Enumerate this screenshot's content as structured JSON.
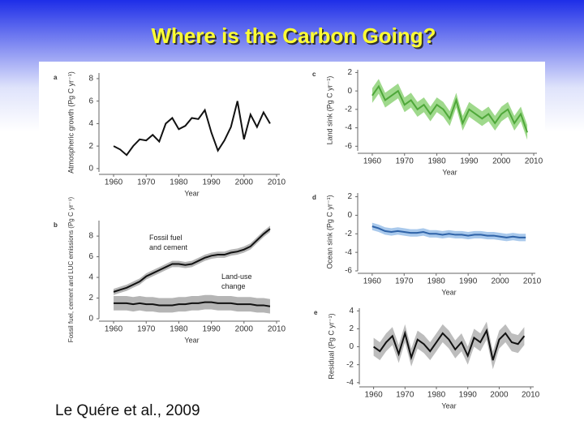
{
  "title": "Where is the Carbon Going?",
  "citation": "Le Quére et al., 2009",
  "chart_data": [
    {
      "type": "line",
      "panel_label": "a",
      "ylabel": "Atmospheric growth (Pg C yr⁻¹)",
      "xlabel": "Year",
      "x": [
        1960,
        1962,
        1964,
        1966,
        1968,
        1970,
        1972,
        1974,
        1976,
        1978,
        1980,
        1982,
        1984,
        1986,
        1988,
        1990,
        1992,
        1994,
        1996,
        1998,
        2000,
        2002,
        2004,
        2006,
        2008
      ],
      "xlim": [
        1957,
        2011
      ],
      "xticks": [
        1960,
        1970,
        1980,
        1990,
        2000,
        2010
      ],
      "ylim": [
        -0.3,
        8.5
      ],
      "yticks": [
        0,
        2,
        4,
        6,
        8
      ],
      "series": [
        {
          "color": "#111111",
          "values": [
            2,
            1.7,
            1.2,
            2,
            2.6,
            2.5,
            3,
            2.4,
            4,
            4.5,
            3.5,
            3.8,
            4.5,
            4.4,
            5.2,
            3.2,
            1.6,
            2.5,
            3.7,
            6,
            2.6,
            4.8,
            3.7,
            5,
            4
          ]
        }
      ]
    },
    {
      "type": "line",
      "panel_label": "b",
      "ylabel": "Fossil fuel, cement and LUC emissions (Pg C yr⁻¹)",
      "xlabel": "Year",
      "x": [
        1960,
        1962,
        1964,
        1966,
        1968,
        1970,
        1972,
        1974,
        1976,
        1978,
        1980,
        1982,
        1984,
        1986,
        1988,
        1990,
        1992,
        1994,
        1996,
        1998,
        2000,
        2002,
        2004,
        2006,
        2008
      ],
      "xlim": [
        1957,
        2011
      ],
      "xticks": [
        1960,
        1970,
        1980,
        1990,
        2000,
        2010
      ],
      "ylim": [
        0,
        9.5
      ],
      "yticks": [
        0,
        2,
        4,
        6,
        8
      ],
      "series": [
        {
          "name": "Fossil fuel and cement",
          "color": "#111111",
          "band_color": "#b5b5b5",
          "values": [
            2.6,
            2.8,
            3,
            3.3,
            3.6,
            4.1,
            4.4,
            4.7,
            5,
            5.3,
            5.3,
            5.2,
            5.3,
            5.6,
            5.9,
            6.1,
            6.2,
            6.2,
            6.4,
            6.5,
            6.7,
            7,
            7.6,
            8.2,
            8.7
          ],
          "errors": [
            0.3,
            0.3,
            0.3,
            0.3,
            0.3,
            0.3,
            0.3,
            0.3,
            0.3,
            0.3,
            0.3,
            0.3,
            0.3,
            0.3,
            0.3,
            0.3,
            0.3,
            0.3,
            0.3,
            0.3,
            0.3,
            0.3,
            0.3,
            0.3,
            0.3
          ]
        },
        {
          "name": "Land-use change",
          "color": "#111111",
          "band_color": "#b5b5b5",
          "values": [
            1.5,
            1.5,
            1.5,
            1.4,
            1.5,
            1.4,
            1.4,
            1.3,
            1.3,
            1.3,
            1.4,
            1.4,
            1.5,
            1.5,
            1.6,
            1.6,
            1.5,
            1.5,
            1.5,
            1.4,
            1.4,
            1.4,
            1.3,
            1.3,
            1.2
          ],
          "errors": [
            0.7,
            0.7,
            0.7,
            0.7,
            0.7,
            0.7,
            0.7,
            0.7,
            0.7,
            0.7,
            0.7,
            0.7,
            0.7,
            0.7,
            0.7,
            0.7,
            0.7,
            0.7,
            0.7,
            0.7,
            0.7,
            0.7,
            0.7,
            0.7,
            0.7
          ]
        }
      ]
    },
    {
      "type": "line",
      "panel_label": "c",
      "ylabel": "Land sink (Pg C yr⁻¹)",
      "xlabel": "Year",
      "x": [
        1960,
        1962,
        1964,
        1966,
        1968,
        1970,
        1972,
        1974,
        1976,
        1978,
        1980,
        1982,
        1984,
        1986,
        1988,
        1990,
        1992,
        1994,
        1996,
        1998,
        2000,
        2002,
        2004,
        2006,
        2008
      ],
      "xlim": [
        1957,
        2011
      ],
      "xticks": [
        1960,
        1970,
        1980,
        1990,
        2000,
        2010
      ],
      "ylim": [
        -6.5,
        2.3
      ],
      "yticks": [
        2,
        0,
        -2,
        -4,
        -6
      ],
      "series": [
        {
          "color": "#4fa83a",
          "band_color": "#9fd98c",
          "values": [
            -0.5,
            0.5,
            -1,
            -0.5,
            0,
            -1.5,
            -1,
            -2,
            -1.5,
            -2.5,
            -1.5,
            -2,
            -3,
            -1,
            -3.5,
            -2,
            -2.5,
            -3,
            -2.5,
            -3.5,
            -2.5,
            -2,
            -3.5,
            -2.5,
            -4.5
          ],
          "errors": [
            0.8,
            0.8,
            0.8,
            0.8,
            0.8,
            0.8,
            0.8,
            0.8,
            0.8,
            0.8,
            0.8,
            0.8,
            0.8,
            0.8,
            0.8,
            0.8,
            0.8,
            0.8,
            0.8,
            0.8,
            0.8,
            0.8,
            0.8,
            0.8,
            0.8
          ]
        }
      ]
    },
    {
      "type": "line",
      "panel_label": "d",
      "ylabel": "Ocean sink (Pg C yr⁻¹)",
      "xlabel": "Year",
      "x": [
        1960,
        1962,
        1964,
        1966,
        1968,
        1970,
        1972,
        1974,
        1976,
        1978,
        1980,
        1982,
        1984,
        1986,
        1988,
        1990,
        1992,
        1994,
        1996,
        1998,
        2000,
        2002,
        2004,
        2006,
        2008
      ],
      "xlim": [
        1957,
        2011
      ],
      "xticks": [
        1960,
        1970,
        1980,
        1990,
        2000,
        2010
      ],
      "ylim": [
        -6,
        2.4
      ],
      "yticks": [
        2,
        0,
        -2,
        -4,
        -6
      ],
      "series": [
        {
          "color": "#2f63a8",
          "band_color": "#a9c9ec",
          "values": [
            -1.2,
            -1.4,
            -1.7,
            -1.8,
            -1.7,
            -1.8,
            -1.9,
            -1.9,
            -1.8,
            -2,
            -2,
            -2.1,
            -2,
            -2.1,
            -2.1,
            -2.2,
            -2.1,
            -2.1,
            -2.2,
            -2.2,
            -2.3,
            -2.4,
            -2.3,
            -2.4,
            -2.4
          ],
          "errors": [
            0.4,
            0.4,
            0.4,
            0.4,
            0.4,
            0.4,
            0.4,
            0.4,
            0.4,
            0.4,
            0.4,
            0.4,
            0.4,
            0.4,
            0.4,
            0.4,
            0.4,
            0.4,
            0.4,
            0.4,
            0.4,
            0.4,
            0.4,
            0.4,
            0.4
          ]
        }
      ]
    },
    {
      "type": "line",
      "panel_label": "e",
      "ylabel": "Residual (Pg C yr⁻¹)",
      "xlabel": "Year",
      "x": [
        1960,
        1962,
        1964,
        1966,
        1968,
        1970,
        1972,
        1974,
        1976,
        1978,
        1980,
        1982,
        1984,
        1986,
        1988,
        1990,
        1992,
        1994,
        1996,
        1998,
        2000,
        2002,
        2004,
        2006,
        2008
      ],
      "xlim": [
        1957,
        2011
      ],
      "xticks": [
        1960,
        1970,
        1980,
        1990,
        2000,
        2010
      ],
      "ylim": [
        -4.2,
        4.3
      ],
      "yticks": [
        4,
        2,
        0,
        -2,
        -4
      ],
      "series": [
        {
          "color": "#111111",
          "band_color": "#bdbdbd",
          "values": [
            0,
            -0.5,
            0.5,
            1.2,
            -0.8,
            1.5,
            -1.2,
            0.8,
            0.3,
            -0.5,
            0.5,
            1.5,
            0.8,
            -0.3,
            0.5,
            -1,
            1,
            0.5,
            1.8,
            -1.5,
            0.8,
            1.5,
            0.5,
            0.3,
            1.2
          ],
          "errors": [
            1,
            1,
            1,
            1,
            1,
            1,
            1,
            1,
            1,
            1,
            1,
            1,
            1,
            1,
            1,
            1,
            1,
            1,
            1,
            1,
            1,
            1,
            1,
            1,
            1
          ]
        }
      ]
    }
  ]
}
